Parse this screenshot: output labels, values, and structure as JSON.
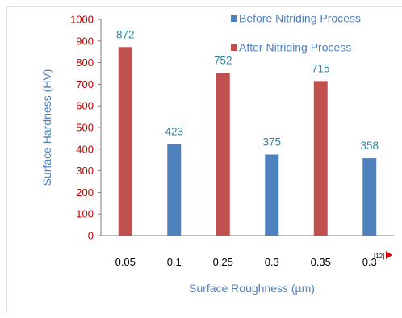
{
  "chart_data": {
    "type": "bar",
    "categories": [
      "0.05",
      "0.1",
      "0.25",
      "0.3",
      "0.35",
      "0.3"
    ],
    "series": [
      {
        "name": "Before Nitriding Process",
        "color": "#4f81bd"
      },
      {
        "name": "After Nitriding Process",
        "color": "#c0504d"
      }
    ],
    "bars": [
      {
        "category": "0.05",
        "series": "After Nitriding Process",
        "value": 872
      },
      {
        "category": "0.1",
        "series": "Before Nitriding Process",
        "value": 423
      },
      {
        "category": "0.25",
        "series": "After Nitriding Process",
        "value": 752
      },
      {
        "category": "0.3",
        "series": "Before Nitriding Process",
        "value": 375
      },
      {
        "category": "0.35",
        "series": "After Nitriding Process",
        "value": 715
      },
      {
        "category": "0.3",
        "series": "Before Nitriding Process",
        "value": 358
      }
    ],
    "ylim": [
      0,
      1000
    ],
    "yticks": [
      0,
      100,
      200,
      300,
      400,
      500,
      600,
      700,
      800,
      900,
      1000
    ],
    "xlabel": "Surface Roughness (µm)",
    "ylabel": "Surface Hardness (HV)",
    "legend_position": "top-right",
    "grid": false,
    "reference_mark": "[12]",
    "tick_color": "#c00000",
    "label_color": "#31859b"
  }
}
